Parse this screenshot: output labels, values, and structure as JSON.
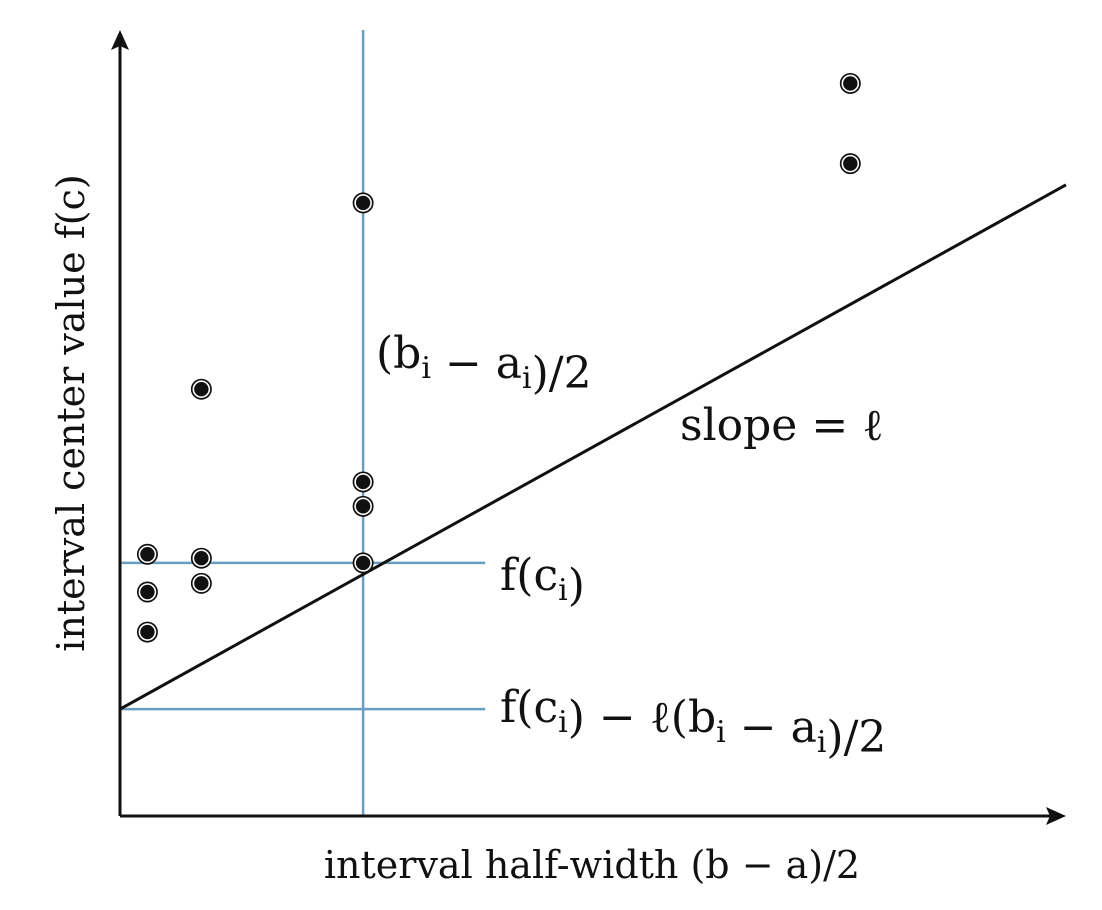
{
  "chart_data": {
    "type": "scatter",
    "xlabel": "interval half-width (b − a)/2",
    "ylabel": "interval center value f(c)",
    "xlim": [
      0,
      1
    ],
    "ylim": [
      0,
      1
    ],
    "points": [
      {
        "x": 0.029,
        "y": 0.333
      },
      {
        "x": 0.029,
        "y": 0.285
      },
      {
        "x": 0.029,
        "y": 0.234
      },
      {
        "x": 0.086,
        "y": 0.328
      },
      {
        "x": 0.086,
        "y": 0.296
      },
      {
        "x": 0.086,
        "y": 0.543
      },
      {
        "x": 0.257,
        "y": 0.322
      },
      {
        "x": 0.257,
        "y": 0.394
      },
      {
        "x": 0.257,
        "y": 0.425
      },
      {
        "x": 0.257,
        "y": 0.78
      },
      {
        "x": 0.772,
        "y": 0.83
      },
      {
        "x": 0.772,
        "y": 0.932
      }
    ],
    "lines": {
      "slope_line": {
        "x0": 0,
        "y0": 0.136,
        "x1": 1,
        "y1": 0.803
      },
      "vertical_guide": {
        "x": 0.257
      },
      "fci_guide": {
        "y": 0.322,
        "x_end": 0.386
      },
      "lower_bound_guide": {
        "y": 0.136,
        "x_end": 0.386
      }
    },
    "annotations": {
      "width_label": "(b_i − a_i)/2",
      "slope_label": "slope = ℓ",
      "fci_label": "f(c_i)",
      "lower_bound_label": "f(c_i) − ℓ(b_i − a_i)/2"
    },
    "colors": {
      "axis": "#111111",
      "guide": "#6a9ec1",
      "point": "#111111"
    }
  }
}
